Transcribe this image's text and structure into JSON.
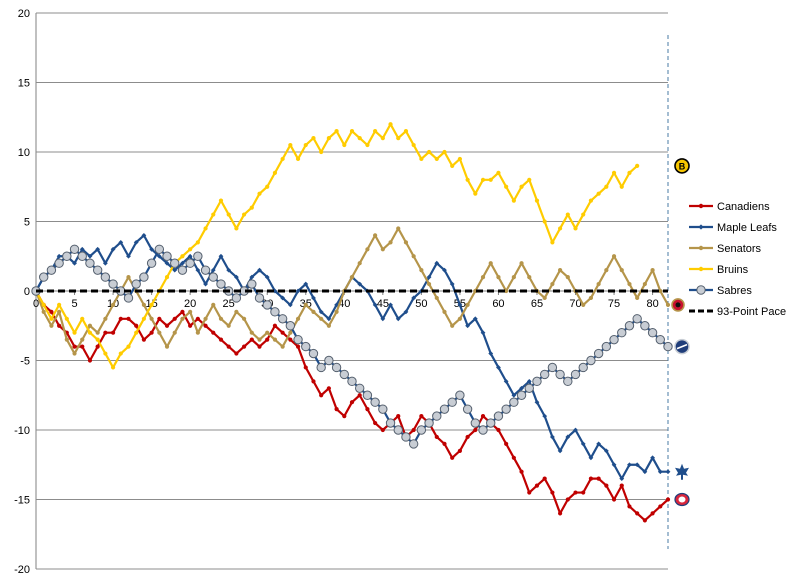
{
  "chart_data": {
    "type": "line",
    "title": "",
    "xlabel": "",
    "ylabel": "",
    "xlim": [
      0,
      82
    ],
    "ylim": [
      -20,
      20
    ],
    "y_ticks": [
      20,
      15,
      10,
      5,
      0,
      -5,
      -10,
      -15,
      -20
    ],
    "x_ticks": [
      0,
      5,
      10,
      15,
      20,
      25,
      30,
      35,
      40,
      45,
      50,
      55,
      60,
      65,
      70,
      75,
      80
    ],
    "grid": "horizontal",
    "legend_position": "right",
    "reference_line_x": 82,
    "series": [
      {
        "name": "Canadiens",
        "color": "#c00000",
        "marker": "dot",
        "icon": "canadiens-logo",
        "values": [
          0,
          -1,
          -1.5,
          -2.5,
          -3,
          -4,
          -4,
          -5,
          -4,
          -3,
          -3,
          -2,
          -2,
          -2.5,
          -3.5,
          -3,
          -2,
          -2.5,
          -2,
          -1.5,
          -2.5,
          -2,
          -2.5,
          -3,
          -3.5,
          -4,
          -4.5,
          -4,
          -3.5,
          -4,
          -3.5,
          -2.5,
          -3,
          -3.5,
          -4,
          -5.5,
          -6.5,
          -7.5,
          -7,
          -8.5,
          -9,
          -8,
          -7.5,
          -8.5,
          -9.5,
          -10,
          -9.5,
          -9,
          -10.5,
          -10,
          -9,
          -9.5,
          -10.5,
          -11,
          -12,
          -11.5,
          -10.5,
          -10,
          -9,
          -9.5,
          -10,
          -11,
          -12,
          -13,
          -14.5,
          -14,
          -13.5,
          -14.5,
          -16,
          -15,
          -14.5,
          -14.5,
          -13.5,
          -13.5,
          -14,
          -15,
          -14,
          -15.5,
          -16,
          -16.5,
          -16,
          -15.5,
          -15
        ]
      },
      {
        "name": "Maple Leafs",
        "color": "#1f4e8c",
        "marker": "diamond",
        "icon": "maple-leafs-logo",
        "values": [
          0,
          1,
          1.5,
          2.5,
          2.5,
          2,
          3,
          2.5,
          3,
          2,
          3,
          3.5,
          2.5,
          3.5,
          4,
          3,
          2.5,
          2,
          1.5,
          2,
          2.5,
          1.5,
          0.5,
          1.5,
          2.5,
          1.5,
          1,
          0,
          1,
          1.5,
          1,
          0,
          -0.5,
          -1,
          0,
          0.5,
          -0.5,
          -1.5,
          -2,
          -1,
          0,
          1,
          0.5,
          0,
          -1,
          -2,
          -1,
          -2,
          -1.5,
          -0.5,
          0,
          1,
          2,
          1.5,
          0.5,
          -1,
          -2.5,
          -2,
          -3,
          -4.5,
          -5.5,
          -6.5,
          -7.5,
          -7,
          -6.5,
          -8,
          -9,
          -10.5,
          -11.5,
          -10.5,
          -10,
          -11,
          -12,
          -11,
          -11.5,
          -12.5,
          -13.5,
          -12.5,
          -12.5,
          -13,
          -12,
          -13,
          -13
        ]
      },
      {
        "name": "Senators",
        "color": "#b5954a",
        "marker": "dot",
        "icon": "senators-logo",
        "values": [
          0,
          -1.5,
          -2.5,
          -1.5,
          -3.5,
          -4.5,
          -3.5,
          -2.5,
          -3,
          -2,
          -1,
          0,
          1,
          0,
          -1,
          -2,
          -3,
          -4,
          -3,
          -2,
          -1.5,
          -3,
          -2,
          -1,
          -2,
          -2.5,
          -1.5,
          -2,
          -3,
          -3.5,
          -3,
          -3.5,
          -4,
          -3,
          -2,
          -1,
          -1.5,
          -2,
          -2.5,
          -1.5,
          0,
          1,
          2,
          3,
          4,
          3,
          3.5,
          4.5,
          3.5,
          2.5,
          1.5,
          0.5,
          -0.5,
          -1.5,
          -2.5,
          -2,
          -1,
          0,
          1,
          2,
          1,
          0,
          1,
          2,
          1,
          0,
          -0.5,
          0.5,
          1.5,
          1,
          0,
          -1,
          -0.5,
          0.5,
          1.5,
          2.5,
          1.5,
          0.5,
          -0.5,
          0.5,
          1.5,
          0,
          -1
        ]
      },
      {
        "name": "Bruins",
        "color": "#ffcc00",
        "marker": "dot",
        "icon": "bruins-logo",
        "values": [
          0,
          -1,
          -2,
          -1,
          -2,
          -3,
          -2,
          -3,
          -3.5,
          -4.5,
          -5.5,
          -4.5,
          -4,
          -3,
          -2,
          -1,
          0,
          1,
          2,
          2.5,
          3,
          3.5,
          4.5,
          5.5,
          6.5,
          5.5,
          4.5,
          5.5,
          6,
          7,
          7.5,
          8.5,
          9.5,
          10.5,
          9.5,
          10.5,
          11,
          10,
          11,
          11.5,
          10.5,
          11.5,
          11,
          10.5,
          11.5,
          11,
          12,
          11,
          11.5,
          10.5,
          9.5,
          10,
          9.5,
          10,
          9,
          9.5,
          8,
          7,
          8,
          8,
          8.5,
          7.5,
          6.5,
          7.5,
          8,
          6.5,
          5,
          3.5,
          4.5,
          5.5,
          4.5,
          5.5,
          6.5,
          7,
          7.5,
          8.5,
          7.5,
          8.5,
          9
        ]
      },
      {
        "name": "Sabres",
        "color": "#1f4e8c",
        "marker": "puck",
        "icon": "sabres-logo",
        "values": [
          0,
          1,
          1.5,
          2,
          2.5,
          3,
          2.5,
          2,
          1.5,
          1,
          0.5,
          0,
          -0.5,
          0.5,
          1,
          2,
          3,
          2.5,
          2,
          1.5,
          2,
          2.5,
          1.5,
          1,
          0.5,
          0,
          -0.5,
          0,
          0.5,
          -0.5,
          -1,
          -1.5,
          -2,
          -2.5,
          -3.5,
          -4,
          -4.5,
          -5.5,
          -5,
          -5.5,
          -6,
          -6.5,
          -7,
          -7.5,
          -8,
          -8.5,
          -9.5,
          -10,
          -10.5,
          -11,
          -10,
          -9.5,
          -9,
          -8.5,
          -8,
          -7.5,
          -8.5,
          -9.5,
          -10,
          -9.5,
          -9,
          -8.5,
          -8,
          -7.5,
          -7,
          -6.5,
          -6,
          -5.5,
          -6,
          -6.5,
          -6,
          -5.5,
          -5,
          -4.5,
          -4,
          -3.5,
          -3,
          -2.5,
          -2,
          -2.5,
          -3,
          -3.5,
          -4
        ]
      },
      {
        "name": "93-Point Pace",
        "color": "#000000",
        "style": "dashed",
        "values": [
          0,
          0
        ]
      }
    ]
  }
}
